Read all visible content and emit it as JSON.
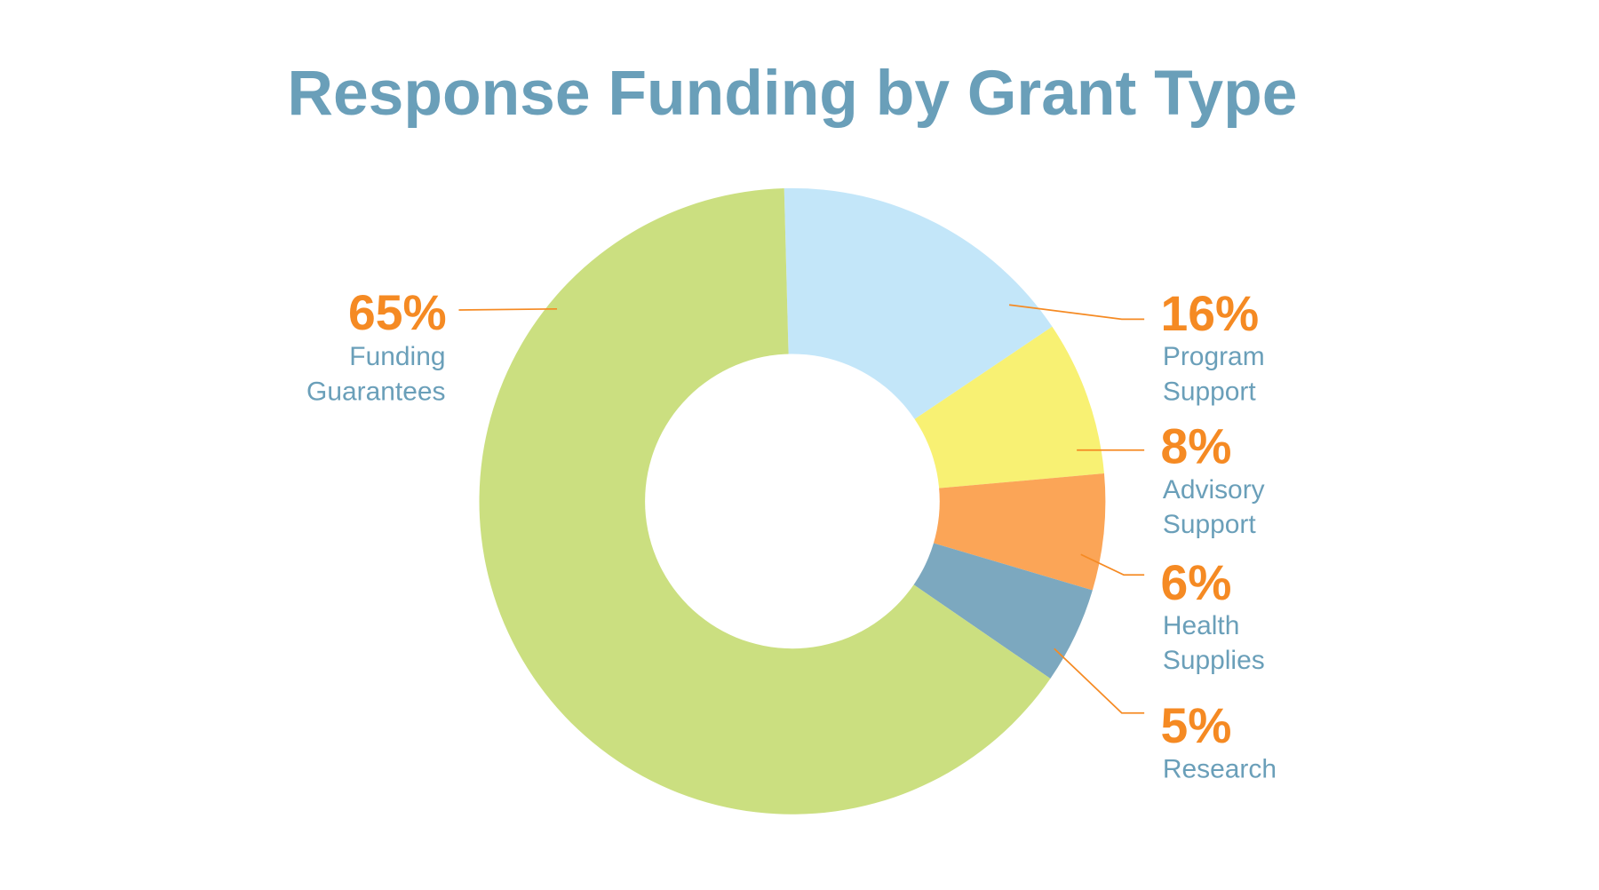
{
  "chart_data": {
    "type": "pie",
    "variant": "donut",
    "title": "Response Funding by Grant Type",
    "slices": [
      {
        "label": "Program Support",
        "value": 16,
        "value_label": "16%",
        "lines": [
          "Program",
          "Support"
        ],
        "color": "#c3e6f9"
      },
      {
        "label": "Advisory Support",
        "value": 8,
        "value_label": "8%",
        "lines": [
          "Advisory",
          "Support"
        ],
        "color": "#f8f173"
      },
      {
        "label": "Health Supplies",
        "value": 6,
        "value_label": "6%",
        "lines": [
          "Health",
          "Supplies"
        ],
        "color": "#fba557"
      },
      {
        "label": "Research",
        "value": 5,
        "value_label": "5%",
        "lines": [
          "Research"
        ],
        "color": "#7ca8bf"
      },
      {
        "label": "Funding Guarantees",
        "value": 65,
        "value_label": "65%",
        "lines": [
          "Funding",
          "Guarantees"
        ],
        "color": "#cbdf80"
      }
    ],
    "label_color": "#6a9fb9",
    "value_color": "#f58a23"
  }
}
